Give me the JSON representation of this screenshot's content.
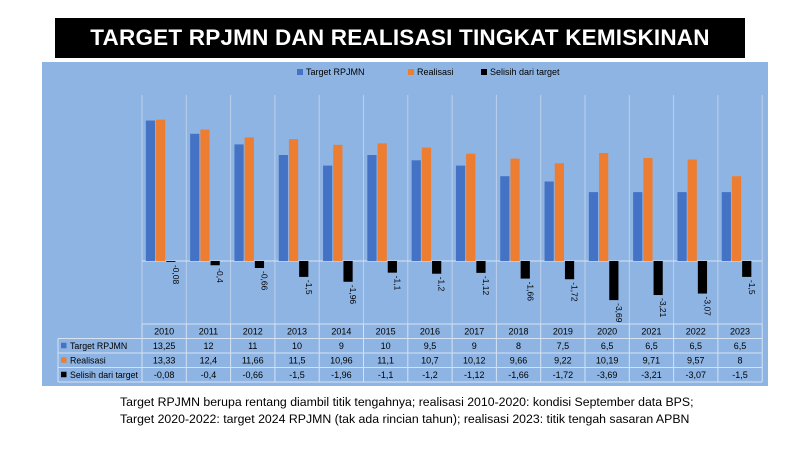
{
  "title": "TARGET RPJMN DAN REALISASI TINGKAT KEMISKINAN",
  "caption": {
    "line1": "Target RPJMN berupa rentang diambil titik tengahnya; realisasi 2010-2020: kondisi September data BPS;",
    "line2": "Target 2020-2022: target 2024 RPJMN (tak ada rincian tahun); realisasi 2023: titik tengah sasaran APBN"
  },
  "colors": {
    "target": "#4472c4",
    "realisasi": "#ed7d31",
    "selisih": "#000000",
    "panel": "#8eb4e3"
  },
  "chart_data": {
    "type": "bar",
    "legend_position": "top",
    "grid": "vertical",
    "categories": [
      "2010",
      "2011",
      "2012",
      "2013",
      "2014",
      "2015",
      "2016",
      "2017",
      "2018",
      "2019",
      "2020",
      "2021",
      "2022",
      "2023"
    ],
    "series": [
      {
        "name": "Target RPJMN",
        "values": [
          13.25,
          12,
          11,
          10,
          9,
          10,
          9.5,
          9,
          8,
          7.5,
          6.5,
          6.5,
          6.5,
          6.5
        ],
        "labels": [
          "13,25",
          "12",
          "11",
          "10",
          "9",
          "10",
          "9,5",
          "9",
          "8",
          "7,5",
          "6,5",
          "6,5",
          "6,5",
          "6,5"
        ]
      },
      {
        "name": "Realisasi",
        "values": [
          13.33,
          12.4,
          11.66,
          11.5,
          10.96,
          11.1,
          10.7,
          10.12,
          9.66,
          9.22,
          10.19,
          9.71,
          9.57,
          8
        ],
        "labels": [
          "13,33",
          "12,4",
          "11,66",
          "11,5",
          "10,96",
          "11,1",
          "10,7",
          "10,12",
          "9,66",
          "9,22",
          "10,19",
          "9,71",
          "9,57",
          "8"
        ]
      },
      {
        "name": "Selisih dari target",
        "values": [
          -0.08,
          -0.4,
          -0.66,
          -1.5,
          -1.96,
          -1.1,
          -1.2,
          -1.12,
          -1.66,
          -1.72,
          -3.69,
          -3.21,
          -3.07,
          -1.5
        ],
        "labels": [
          "-0,08",
          "-0,4",
          "-0,66",
          "-1,5",
          "-1,96",
          "-1,1",
          "-1,2",
          "-1,12",
          "-1,66",
          "-1,72",
          "-3,69",
          "-3,21",
          "-3,07",
          "-1,5"
        ]
      }
    ]
  }
}
